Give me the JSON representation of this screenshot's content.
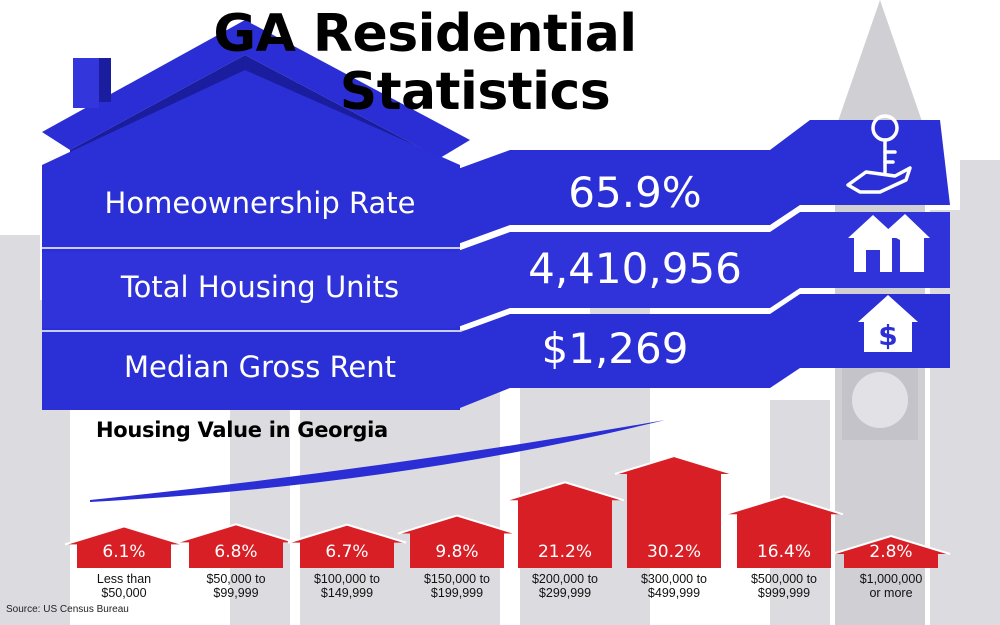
{
  "title": {
    "line1": "GA Residential",
    "line2": "Statistics"
  },
  "stats": [
    {
      "label": "Homeownership Rate",
      "value": "65.9%",
      "icon": "hand-key-icon"
    },
    {
      "label": "Total Housing Units",
      "value": "4,410,956",
      "icon": "houses-icon"
    },
    {
      "label": "Median Gross Rent",
      "value": "$1,269",
      "icon": "house-dollar-icon"
    }
  ],
  "colors": {
    "banner_blue": "#2b2fd6",
    "banner_blue_dark": "#1d20b8",
    "roof_blue": "#2a2ed4",
    "house_red": "#d81f26",
    "skyline_gray": "#d9d9dd"
  },
  "chart_data": {
    "type": "bar",
    "title": "Housing Value in Georgia",
    "categories": [
      "Less than\n$50,000",
      "$50,000 to\n$99,999",
      "$100,000 to\n$149,999",
      "$150,000 to\n$199,999",
      "$200,000 to\n$299,999",
      "$300,000 to\n$499,999",
      "$500,000 to\n$999,999",
      "$1,000,000\nor more"
    ],
    "values": [
      6.1,
      6.8,
      6.7,
      9.8,
      21.2,
      30.2,
      16.4,
      2.8
    ],
    "value_labels": [
      "6.1%",
      "6.8%",
      "6.7%",
      "9.8%",
      "21.2%",
      "30.2%",
      "16.4%",
      "2.8%"
    ]
  },
  "source": "Source: US Census Bureau"
}
